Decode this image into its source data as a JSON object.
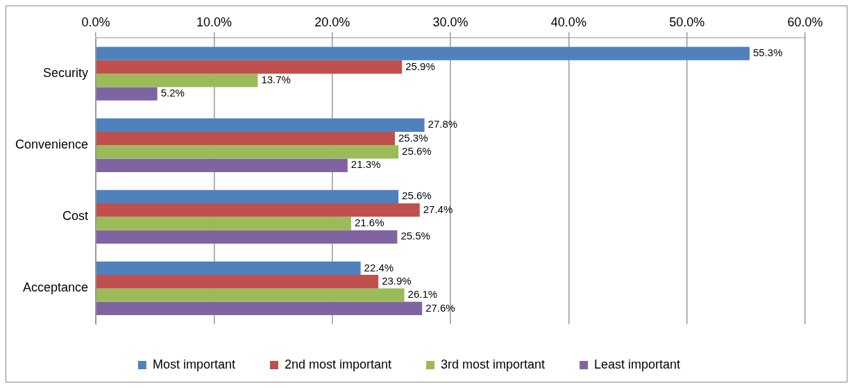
{
  "chart_data": {
    "type": "bar",
    "orientation": "horizontal",
    "categories": [
      "Security",
      "Convenience",
      "Cost",
      "Acceptance"
    ],
    "series": [
      {
        "name": "Most important",
        "color": "#4f81bd",
        "values": [
          55.3,
          27.8,
          25.6,
          22.4
        ],
        "value_labels": [
          "55.3%",
          "27.8%",
          "25.6%",
          "22.4%"
        ]
      },
      {
        "name": "2nd most important",
        "color": "#c0504d",
        "values": [
          25.9,
          25.3,
          27.4,
          23.9
        ],
        "value_labels": [
          "25.9%",
          "25.3%",
          "27.4%",
          "23.9%"
        ]
      },
      {
        "name": "3rd most important",
        "color": "#9bbb59",
        "values": [
          13.7,
          25.6,
          21.6,
          26.1
        ],
        "value_labels": [
          "13.7%",
          "25.6%",
          "21.6%",
          "26.1%"
        ]
      },
      {
        "name": "Least important",
        "color": "#8064a2",
        "values": [
          5.2,
          21.3,
          25.5,
          27.6
        ],
        "value_labels": [
          "5.2%",
          "21.3%",
          "25.5%",
          "27.6%"
        ]
      }
    ],
    "xlim": [
      0,
      60
    ],
    "xticks": [
      {
        "value": 0,
        "label": "0.0%"
      },
      {
        "value": 10,
        "label": "10.0%"
      },
      {
        "value": 20,
        "label": "20.0%"
      },
      {
        "value": 30,
        "label": "30.0%"
      },
      {
        "value": 40,
        "label": "40.0%"
      },
      {
        "value": 50,
        "label": "50.0%"
      },
      {
        "value": 60,
        "label": "60.0%"
      }
    ],
    "grid": "x",
    "legend": "bottom"
  }
}
